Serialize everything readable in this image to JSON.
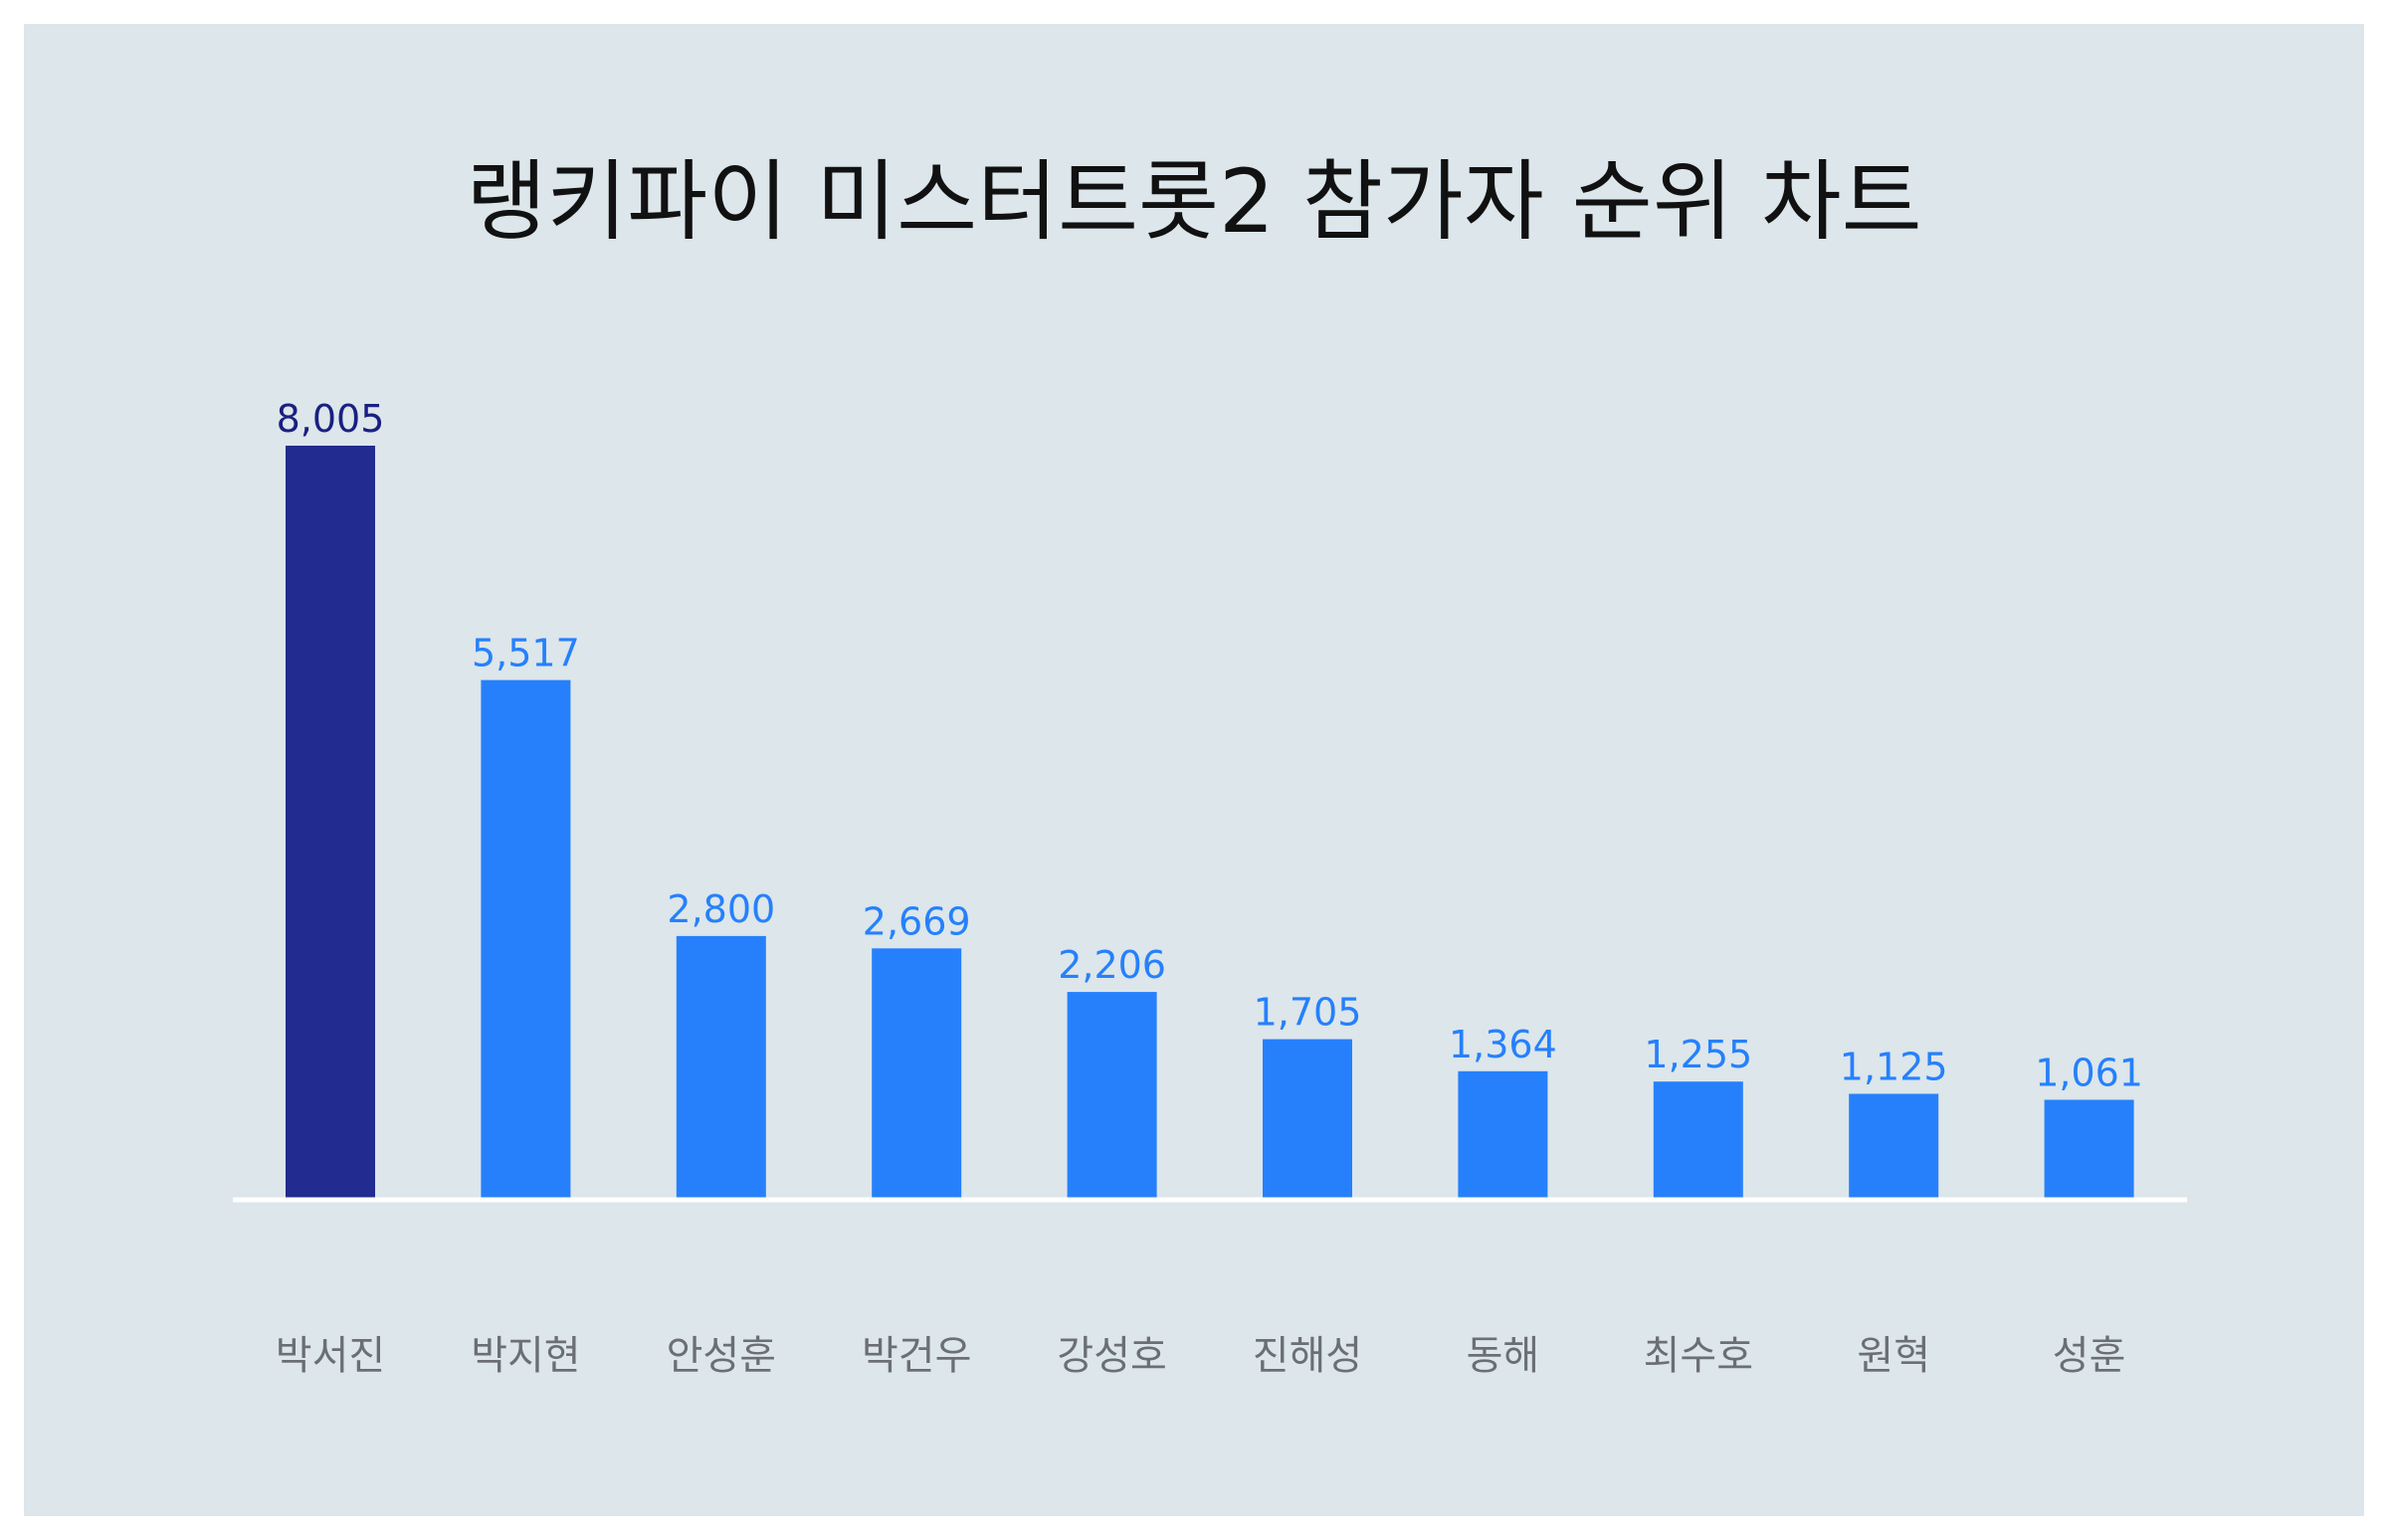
{
  "chart_data": {
    "type": "bar",
    "title": "랭키파이 미스터트롯2 참가자 순위 차트",
    "categories": [
      "박서진",
      "박지현",
      "안성훈",
      "박건우",
      "강성호",
      "진해성",
      "동해",
      "최수호",
      "원혁",
      "성훈"
    ],
    "values": [
      8005,
      5517,
      2800,
      2669,
      2206,
      1705,
      1364,
      1255,
      1125,
      1061
    ],
    "value_labels": [
      "8,005",
      "5,517",
      "2,800",
      "2,669",
      "2,206",
      "1,705",
      "1,364",
      "1,255",
      "1,125",
      "1,061"
    ],
    "highlight_index": 0,
    "colors": {
      "highlight_bar": "#222b8f",
      "bar": "#2680fc",
      "highlight_label": "#1a2080",
      "label": "#2680fc",
      "background": "#dce6eb",
      "baseline": "#ffffff"
    },
    "xlabel": "",
    "ylabel": "",
    "ylim": [
      0,
      8005
    ],
    "grid": false,
    "legend": "none"
  }
}
